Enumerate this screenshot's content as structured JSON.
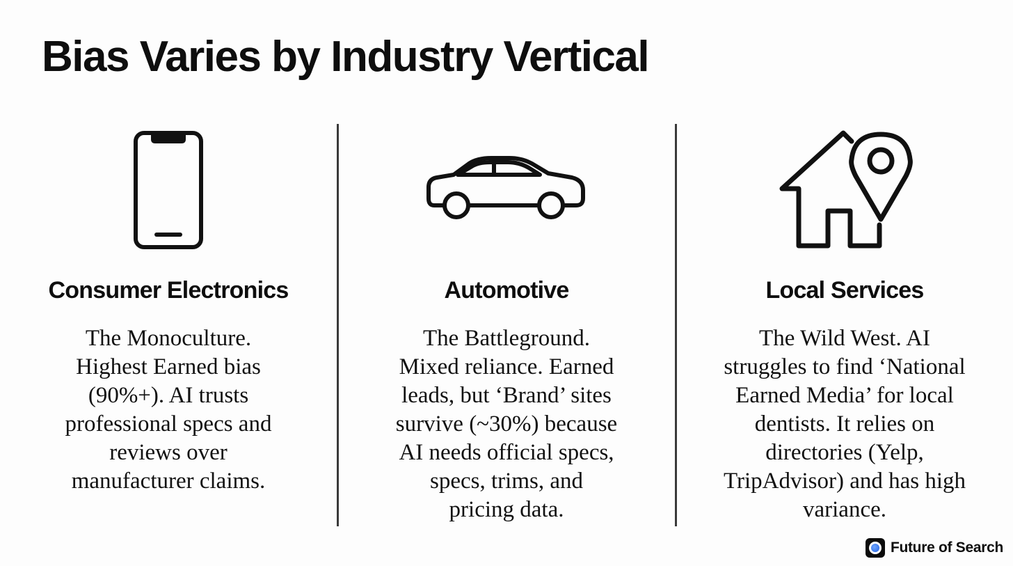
{
  "slide": {
    "title": "Bias Varies by Industry Vertical"
  },
  "columns": [
    {
      "icon": "smartphone-icon",
      "heading": "Consumer Electronics",
      "body_lines": [
        "The Monoculture.",
        "Highest Earned bias",
        "(90%+). AI trusts",
        "professional specs and",
        "reviews over",
        "manufacturer claims."
      ]
    },
    {
      "icon": "car-icon",
      "heading": "Automotive",
      "body_lines": [
        "The Battleground.",
        "Mixed reliance. Earned",
        "leads, but ‘Brand’ sites",
        "survive (~30%) because",
        "AI needs official specs,",
        "specs, trims, and",
        "pricing data."
      ]
    },
    {
      "icon": "house-location-pin-icon",
      "heading": "Local Services",
      "body_lines": [
        "The Wild West. AI",
        "struggles to find ‘National",
        "Earned Media’ for local",
        "dentists. It relies on",
        "directories (Yelp,",
        "TripAdvisor) and has high",
        "variance."
      ]
    }
  ],
  "brand": {
    "name": "Future of Search",
    "icon": "future-of-search-logo-icon",
    "accent_color": "#1f5fe0"
  }
}
